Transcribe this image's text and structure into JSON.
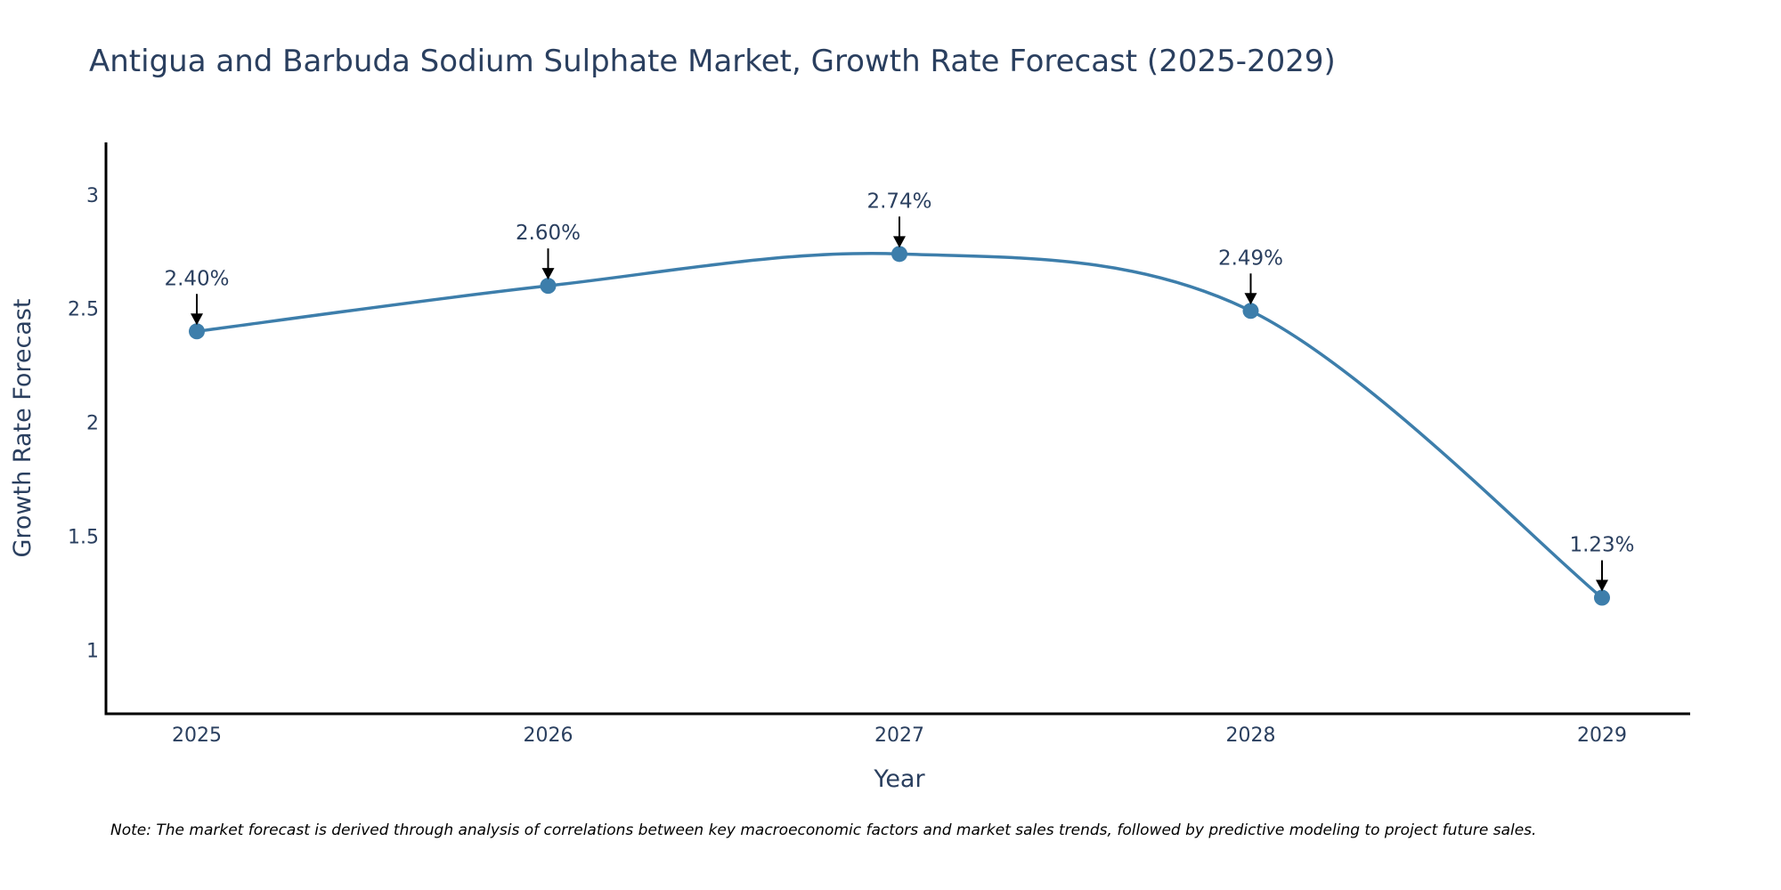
{
  "chart_data": {
    "type": "line",
    "title": "Antigua and Barbuda Sodium Sulphate Market, Growth Rate Forecast (2025-2029)",
    "xlabel": "Year",
    "ylabel": "Growth Rate Forecast",
    "categories": [
      "2025",
      "2026",
      "2027",
      "2028",
      "2029"
    ],
    "values": [
      2.4,
      2.6,
      2.74,
      2.49,
      1.23
    ],
    "data_labels": [
      "2.40%",
      "2.60%",
      "2.74%",
      "2.49%",
      "1.23%"
    ],
    "yticks": [
      1,
      1.5,
      2,
      2.5,
      3
    ],
    "ytick_labels": [
      "1",
      "1.5",
      "2",
      "2.5",
      "3"
    ],
    "ylim": [
      0.72,
      3.23
    ],
    "grid": false,
    "line_shape": "spline",
    "colors": {
      "line": "#3d7eab",
      "marker": "#3d7eab",
      "arrow": "#000000",
      "axis": "#000000"
    },
    "note": "Note: The market forecast is derived through analysis of correlations between key macroeconomic factors and market sales trends, followed by predictive modeling to project future sales."
  }
}
